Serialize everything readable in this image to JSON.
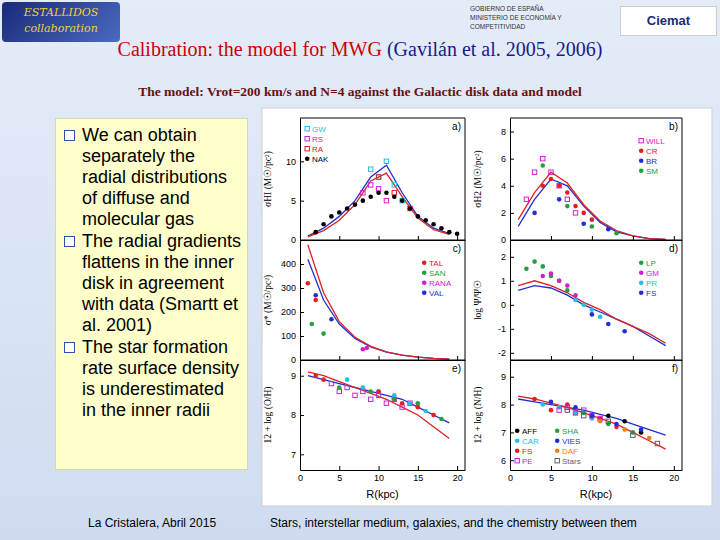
{
  "slide": {
    "title": "Calibration: the model for MWG",
    "title_ref": "(Gavilán et al. 2005, 2006)",
    "subtitle": "The model: Vrot=200 km/s and N=4 against the Galactic disk data and model",
    "bullets": [
      "We can obtain separately the radial distributions of diffuse and molecular gas",
      "The radial gradients flattens in the inner disk in agreement with data (Smartt et al. 2001)",
      "The star formation rate surface density is underestimated  in the inner radii"
    ],
    "footer_left": "La Cristalera, Abril  2015",
    "footer_right": "Stars, interstellar medium, galaxies, and the chemistry between them",
    "logo_left": [
      "ESTALLIDOS",
      "collaboration"
    ],
    "ministry": [
      "GOBIERNO DE ESPAÑA",
      "MINISTERIO DE ECONOMÍA Y COMPETITIVIDAD"
    ],
    "logo_right": "Ciemat"
  },
  "chart_data": [
    {
      "type": "scatter",
      "annotations": [
        "a)"
      ],
      "ylabel": "σHI (M☉/pc²)",
      "xlim": [
        0,
        21
      ],
      "xticks": [
        0,
        5,
        10,
        15,
        20
      ],
      "ylim": [
        0,
        15.5
      ],
      "yticks": [
        0,
        5,
        10
      ],
      "tick_labels": "y",
      "legend": "top-left",
      "series": [
        {
          "type": "line",
          "color": "#2030d0",
          "line_style": "solid",
          "x": [
            1,
            3,
            5,
            7,
            9,
            11,
            13,
            15,
            17,
            19
          ],
          "values": [
            0.5,
            1.5,
            3,
            5,
            8,
            9.5,
            6,
            3,
            1.5,
            0.8
          ]
        },
        {
          "type": "line",
          "color": "#e02020",
          "line_style": "solid",
          "x": [
            1,
            3,
            5,
            7,
            9,
            11,
            13,
            15,
            17,
            19
          ],
          "values": [
            0.4,
            1.2,
            2.5,
            4.5,
            7.5,
            8.5,
            5.5,
            2.8,
            1.3,
            0.7
          ]
        },
        {
          "name": "GW",
          "type": "scatter",
          "color": "#20c0e0",
          "marker": "square",
          "x": [
            9,
            10,
            11,
            12,
            13
          ],
          "values": [
            9,
            8,
            10,
            7,
            5
          ]
        },
        {
          "name": "RS",
          "type": "scatter",
          "color": "#d020d0",
          "marker": "square",
          "x": [
            8,
            9,
            10,
            11
          ],
          "values": [
            6,
            7,
            6.5,
            5
          ]
        },
        {
          "name": "RA",
          "type": "scatter",
          "color": "#e02020",
          "marker": "square",
          "x": [
            10,
            12,
            14
          ],
          "values": [
            8,
            6,
            4
          ]
        },
        {
          "name": "NAK",
          "type": "scatter",
          "color": "#000000",
          "marker": "circle",
          "x": [
            2,
            3,
            4,
            5,
            6,
            7,
            8,
            9,
            10,
            11,
            12,
            13,
            14,
            15,
            16,
            17,
            18,
            19,
            20
          ],
          "values": [
            1,
            2,
            3,
            3.5,
            4,
            4.5,
            5,
            5.5,
            6,
            6,
            5.5,
            5,
            4,
            3,
            2.5,
            2,
            1.5,
            1,
            0.8
          ]
        }
      ]
    },
    {
      "type": "scatter",
      "annotations": [
        "b)"
      ],
      "ylabel": "σH2 (M☉/pc²)",
      "xlim": [
        0,
        21
      ],
      "xticks": [
        0,
        5,
        10,
        15,
        20
      ],
      "ylim": [
        0,
        9
      ],
      "yticks": [
        0,
        2,
        4,
        6,
        8
      ],
      "tick_labels": "y",
      "legend": "top-right",
      "series": [
        {
          "type": "line",
          "color": "#2030d0",
          "line_style": "solid",
          "x": [
            1,
            3,
            5,
            7,
            9,
            11,
            13,
            15,
            17,
            19
          ],
          "values": [
            1,
            3,
            4.5,
            4,
            2.5,
            1.3,
            0.6,
            0.3,
            0.1,
            0.05
          ]
        },
        {
          "type": "line",
          "color": "#e02020",
          "line_style": "solid",
          "x": [
            1,
            3,
            5,
            7,
            9,
            11,
            13,
            15,
            17,
            19
          ],
          "values": [
            1.5,
            3.5,
            5,
            4.2,
            2.6,
            1.4,
            0.7,
            0.3,
            0.1,
            0.05
          ]
        },
        {
          "name": "WILL",
          "type": "scatter",
          "color": "#d020d0",
          "marker": "square",
          "x": [
            2,
            3,
            4,
            5,
            6,
            7,
            8
          ],
          "values": [
            3,
            5,
            6,
            5,
            4,
            3,
            2
          ]
        },
        {
          "name": "CR",
          "type": "scatter",
          "color": "#e02020",
          "marker": "circle",
          "x": [
            4,
            5,
            6,
            7,
            8,
            9,
            10
          ],
          "values": [
            4,
            4.5,
            4,
            3.5,
            2.5,
            2,
            1.5
          ]
        },
        {
          "name": "BR",
          "type": "scatter",
          "color": "#2030d0",
          "marker": "circle",
          "x": [
            3,
            6,
            9,
            12
          ],
          "values": [
            2,
            3,
            1.2,
            0.8
          ]
        },
        {
          "name": "SM",
          "type": "scatter",
          "color": "#20a040",
          "marker": "circle",
          "x": [
            4,
            7,
            10,
            13
          ],
          "values": [
            5.5,
            2.5,
            1,
            0.5
          ]
        }
      ]
    },
    {
      "type": "scatter",
      "annotations": [
        "c)"
      ],
      "ylabel": "σ* (M☉/pc²)",
      "xlim": [
        0,
        21
      ],
      "xticks": [
        0,
        5,
        10,
        15,
        20
      ],
      "ylim": [
        0,
        500
      ],
      "yticks": [
        0,
        100,
        200,
        300,
        400
      ],
      "tick_labels": "y",
      "legend": "top-right",
      "series": [
        {
          "type": "line",
          "color": "#2030d0",
          "line_style": "solid",
          "x": [
            1,
            3,
            5,
            7,
            9,
            11,
            13,
            15,
            17,
            19
          ],
          "values": [
            420,
            250,
            150,
            90,
            55,
            33,
            20,
            12,
            7,
            4
          ]
        },
        {
          "type": "line",
          "color": "#e02020",
          "line_style": "solid",
          "x": [
            1,
            3,
            5,
            7,
            9,
            11,
            13,
            15,
            17,
            19
          ],
          "values": [
            480,
            280,
            160,
            95,
            57,
            34,
            20,
            12,
            7,
            4
          ]
        },
        {
          "name": "TAL",
          "type": "scatter",
          "color": "#e02020",
          "marker": "circle",
          "x": [
            1,
            2
          ],
          "values": [
            320,
            250
          ]
        },
        {
          "name": "SAN",
          "type": "scatter",
          "color": "#20a040",
          "marker": "circle",
          "x": [
            1.5,
            3
          ],
          "values": [
            150,
            110
          ]
        },
        {
          "name": "RANA",
          "type": "scatter",
          "color": "#d020d0",
          "marker": "circle",
          "x": [
            8,
            8.5
          ],
          "values": [
            45,
            50
          ]
        },
        {
          "name": "VAL",
          "type": "scatter",
          "color": "#2030d0",
          "marker": "circle",
          "x": [
            2,
            4
          ],
          "values": [
            270,
            170
          ]
        }
      ]
    },
    {
      "type": "scatter",
      "annotations": [
        "d)"
      ],
      "ylabel": "log Ψ/Ψ☉",
      "xlim": [
        0,
        21
      ],
      "xticks": [
        0,
        5,
        10,
        15,
        20
      ],
      "ylim": [
        -2.3,
        2.7
      ],
      "yticks": [
        -2,
        -1,
        0,
        1,
        2
      ],
      "tick_labels": "y",
      "legend": "top-right",
      "series": [
        {
          "type": "line",
          "color": "#2030d0",
          "line_style": "solid",
          "x": [
            1,
            3,
            5,
            7,
            9,
            11,
            13,
            15,
            17,
            19
          ],
          "values": [
            0.6,
            0.8,
            0.7,
            0.4,
            0,
            -0.3,
            -0.6,
            -0.9,
            -1.3,
            -1.7
          ]
        },
        {
          "type": "line",
          "color": "#e02020",
          "line_style": "solid",
          "x": [
            1,
            3,
            5,
            7,
            9,
            11,
            13,
            15,
            17,
            19
          ],
          "values": [
            0.8,
            1.0,
            0.8,
            0.5,
            0.1,
            -0.2,
            -0.6,
            -0.9,
            -1.2,
            -1.6
          ]
        },
        {
          "name": "LP",
          "type": "scatter",
          "color": "#20a040",
          "marker": "circle",
          "x": [
            2,
            3,
            4,
            5,
            6,
            7
          ],
          "values": [
            1.5,
            1.8,
            1.6,
            1.2,
            1.0,
            0.6
          ]
        },
        {
          "name": "GM",
          "type": "scatter",
          "color": "#d020d0",
          "marker": "circle",
          "x": [
            4,
            5,
            6,
            7,
            8
          ],
          "values": [
            1.2,
            1.3,
            1.0,
            0.8,
            0.4
          ]
        },
        {
          "name": "PR",
          "type": "scatter",
          "color": "#20c0e0",
          "marker": "circle",
          "x": [
            8,
            9,
            10,
            11
          ],
          "values": [
            0.2,
            0,
            -0.2,
            -0.5
          ]
        },
        {
          "name": "FS",
          "type": "scatter",
          "color": "#2030d0",
          "marker": "circle",
          "x": [
            10,
            12,
            14
          ],
          "values": [
            -0.4,
            -0.8,
            -1.1
          ]
        }
      ]
    },
    {
      "type": "scatter",
      "annotations": [
        "e)"
      ],
      "ylabel": "12 + log (O/H)",
      "xlabel": "R(kpc)",
      "xlim": [
        0,
        21
      ],
      "xticks": [
        0,
        5,
        10,
        15,
        20
      ],
      "ylim": [
        6.6,
        9.4
      ],
      "yticks": [
        7,
        8,
        9
      ],
      "tick_labels": true,
      "series": [
        {
          "type": "line",
          "color": "#2030d0",
          "line_style": "solid",
          "x": [
            1,
            3,
            5,
            7,
            9,
            11,
            13,
            15,
            17,
            19
          ],
          "values": [
            9.0,
            8.9,
            8.8,
            8.7,
            8.6,
            8.5,
            8.4,
            8.2,
            8.0,
            7.8
          ]
        },
        {
          "type": "line",
          "color": "#e02020",
          "line_style": "solid",
          "x": [
            1,
            3,
            5,
            7,
            9,
            11,
            13,
            15,
            17,
            19
          ],
          "values": [
            9.1,
            9.0,
            8.85,
            8.7,
            8.55,
            8.4,
            8.2,
            8.0,
            7.7,
            7.4
          ]
        },
        {
          "type": "scatter",
          "color": "#d020d0",
          "marker": "square",
          "x": [
            4,
            5,
            6,
            7,
            8,
            9,
            10,
            11,
            12,
            13,
            14
          ],
          "values": [
            8.8,
            8.6,
            8.7,
            8.5,
            8.6,
            8.4,
            8.5,
            8.3,
            8.4,
            8.2,
            8.3
          ]
        },
        {
          "type": "scatter",
          "color": "#20c0e0",
          "marker": "circle",
          "x": [
            6,
            8,
            10,
            12,
            14,
            16
          ],
          "values": [
            8.9,
            8.7,
            8.6,
            8.5,
            8.3,
            8.1
          ]
        },
        {
          "type": "scatter",
          "color": "#e02020",
          "marker": "circle",
          "x": [
            2,
            3,
            10,
            13,
            15,
            17
          ],
          "values": [
            9.0,
            8.9,
            8.6,
            8.3,
            8.2,
            8.0
          ]
        },
        {
          "type": "scatter",
          "color": "#20a040",
          "marker": "circle",
          "x": [
            5,
            9,
            12,
            15,
            18
          ],
          "values": [
            8.7,
            8.6,
            8.4,
            8.3,
            7.9
          ]
        }
      ]
    },
    {
      "type": "scatter",
      "annotations": [
        "f)"
      ],
      "ylabel": "12 + log (N/H)",
      "xlabel": "R(kpc)",
      "xlim": [
        0,
        21
      ],
      "xticks": [
        0,
        5,
        10,
        15,
        20
      ],
      "ylim": [
        5.65,
        9.6
      ],
      "yticks": [
        6,
        7,
        8,
        9
      ],
      "tick_labels": true,
      "legend": "bottom-left",
      "series": [
        {
          "type": "line",
          "color": "#2030d0",
          "line_style": "solid",
          "x": [
            1,
            3,
            5,
            7,
            9,
            11,
            13,
            15,
            17,
            19
          ],
          "values": [
            8.2,
            8.1,
            8.0,
            7.9,
            7.8,
            7.65,
            7.5,
            7.3,
            7.1,
            6.9
          ]
        },
        {
          "type": "line",
          "color": "#e02020",
          "line_style": "solid",
          "x": [
            1,
            3,
            5,
            7,
            9,
            11,
            13,
            15,
            17,
            19
          ],
          "values": [
            8.3,
            8.2,
            8.05,
            7.9,
            7.7,
            7.5,
            7.3,
            7.0,
            6.7,
            6.4
          ]
        },
        {
          "name": "AFF",
          "type": "scatter",
          "color": "#000000",
          "marker": "circle",
          "x": [
            12,
            14,
            16
          ],
          "values": [
            7.6,
            7.4,
            7.0
          ]
        },
        {
          "name": "CAR",
          "type": "scatter",
          "color": "#20c0e0",
          "marker": "circle",
          "x": [
            4,
            6,
            8,
            10
          ],
          "values": [
            8.0,
            7.9,
            7.7,
            7.5
          ]
        },
        {
          "name": "FS",
          "type": "scatter",
          "color": "#e02020",
          "marker": "circle",
          "x": [
            3,
            5,
            7,
            11,
            13
          ],
          "values": [
            8.2,
            7.8,
            8.0,
            7.5,
            7.2
          ]
        },
        {
          "name": "PE",
          "type": "scatter",
          "color": "#d020d0",
          "marker": "square",
          "x": [
            6,
            7,
            8,
            9,
            10,
            11
          ],
          "values": [
            7.8,
            7.9,
            7.7,
            7.8,
            7.6,
            7.5
          ]
        },
        {
          "name": "SHA",
          "type": "scatter",
          "color": "#20a040",
          "marker": "circle",
          "x": [
            9,
            12,
            15
          ],
          "values": [
            7.7,
            7.3,
            7.0
          ]
        },
        {
          "name": "VIES",
          "type": "scatter",
          "color": "#2030d0",
          "marker": "circle",
          "x": [
            5,
            8,
            10,
            13,
            16
          ],
          "values": [
            8.1,
            7.9,
            7.6,
            7.3,
            7.1
          ]
        },
        {
          "name": "DAF",
          "type": "scatter",
          "color": "#f08010",
          "marker": "circle",
          "x": [
            11,
            14,
            17
          ],
          "values": [
            7.4,
            7.1,
            6.8
          ]
        },
        {
          "name": "Stars",
          "type": "scatter",
          "color": "#606060",
          "marker": "square",
          "x": [
            7,
            9,
            12,
            15,
            18
          ],
          "values": [
            7.8,
            7.6,
            7.4,
            6.9,
            6.6
          ]
        }
      ]
    }
  ]
}
